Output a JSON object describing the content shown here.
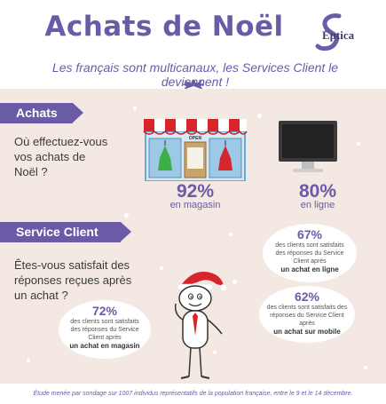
{
  "header": {
    "title": "Achats de Noël",
    "subtitle": "Les français sont multicanaux, les Services Client le deviennent !",
    "logo_text": "Eptica"
  },
  "achats": {
    "label": "Achats",
    "question": "Où effectuez-vous vos achats de Noël ?",
    "store_sign": "OPEN",
    "store_pct": "92%",
    "store_label": "en magasin",
    "online_pct": "80%",
    "online_label": "en ligne"
  },
  "service_client": {
    "label": "Service Client",
    "question": "Êtes-vous satisfait des réponses reçues après un achat ?",
    "bubbles": [
      {
        "pct": "67%",
        "text": "des clients sont satisfaits des réponses du Service Client après",
        "strong": "un achat en ligne"
      },
      {
        "pct": "72%",
        "text": "des clients sont satisfaits des réponses du Service Client après",
        "strong": "un achat en magasin"
      },
      {
        "pct": "62%",
        "text": "des clients sont satisfaits des réponses du Service Client après",
        "strong": "un achat sur mobile"
      }
    ]
  },
  "footer": "Étude menée par sondage sur 1007 individus représentatifs de la population française, entre le 9 et le 14 décembre.",
  "colors": {
    "accent": "#6b5aa6",
    "background": "#f3e9e2",
    "red": "#d7262b",
    "green": "#3fae49"
  }
}
